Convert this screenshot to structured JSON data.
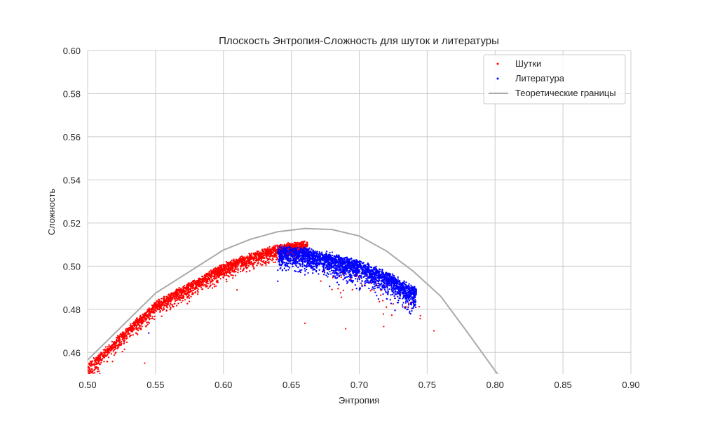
{
  "chart_data": {
    "type": "scatter",
    "title": "Плоскость Энтропия-Сложность для шуток и литературы",
    "xlabel": "Энтропия",
    "ylabel": "Сложность",
    "xlim": [
      0.5,
      0.9
    ],
    "ylim": [
      0.45,
      0.6
    ],
    "x_ticks": [
      "0.50",
      "0.55",
      "0.60",
      "0.65",
      "0.70",
      "0.75",
      "0.80",
      "0.85",
      "0.90"
    ],
    "y_ticks": [
      "0.46",
      "0.48",
      "0.50",
      "0.52",
      "0.54",
      "0.56",
      "0.58",
      "0.60"
    ],
    "grid": true,
    "legend_position": "top-right",
    "series": [
      {
        "name": "Шутки",
        "kind": "scatter",
        "color": "#ff0000",
        "x_range": [
          0.5,
          0.755
        ],
        "band_center": [
          [
            0.5,
            0.454
          ],
          [
            0.55,
            0.483
          ],
          [
            0.6,
            0.5005
          ],
          [
            0.63,
            0.5075
          ],
          [
            0.65,
            0.5105
          ],
          [
            0.66,
            0.511
          ]
        ],
        "band_width": 0.006,
        "outliers": [
          [
            0.66,
            0.4735
          ],
          [
            0.69,
            0.471
          ],
          [
            0.718,
            0.472
          ],
          [
            0.755,
            0.47
          ],
          [
            0.542,
            0.455
          ],
          [
            0.745,
            0.477
          ],
          [
            0.72,
            0.481
          ],
          [
            0.61,
            0.489
          ]
        ]
      },
      {
        "name": "Литература",
        "kind": "scatter",
        "color": "#0000ff",
        "x_range": [
          0.64,
          0.742
        ],
        "band_center": [
          [
            0.645,
            0.508
          ],
          [
            0.66,
            0.5075
          ],
          [
            0.68,
            0.505
          ],
          [
            0.7,
            0.5015
          ],
          [
            0.72,
            0.4965
          ],
          [
            0.74,
            0.4895
          ]
        ],
        "band_width": 0.009,
        "outliers": [
          [
            0.545,
            0.469
          ],
          [
            0.64,
            0.493
          ],
          [
            0.66,
            0.496
          ]
        ]
      },
      {
        "name": "Теоретические границы",
        "kind": "line",
        "color": "#aaaaaa",
        "x": [
          0.5,
          0.55,
          0.6,
          0.62,
          0.64,
          0.66,
          0.68,
          0.7,
          0.72,
          0.74,
          0.76,
          0.78,
          0.8,
          0.802
        ],
        "y": [
          0.4565,
          0.4875,
          0.5075,
          0.5125,
          0.516,
          0.5175,
          0.517,
          0.514,
          0.507,
          0.4975,
          0.486,
          0.469,
          0.4515,
          0.45
        ]
      }
    ]
  }
}
